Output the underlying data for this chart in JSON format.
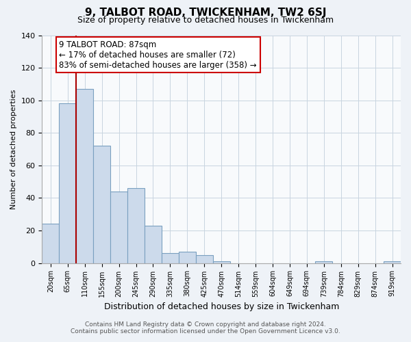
{
  "title": "9, TALBOT ROAD, TWICKENHAM, TW2 6SJ",
  "subtitle": "Size of property relative to detached houses in Twickenham",
  "xlabel": "Distribution of detached houses by size in Twickenham",
  "ylabel": "Number of detached properties",
  "categories": [
    "20sqm",
    "65sqm",
    "110sqm",
    "155sqm",
    "200sqm",
    "245sqm",
    "290sqm",
    "335sqm",
    "380sqm",
    "425sqm",
    "470sqm",
    "514sqm",
    "559sqm",
    "604sqm",
    "649sqm",
    "694sqm",
    "739sqm",
    "784sqm",
    "829sqm",
    "874sqm",
    "919sqm"
  ],
  "values": [
    24,
    98,
    107,
    72,
    44,
    46,
    23,
    6,
    7,
    5,
    1,
    0,
    0,
    0,
    0,
    0,
    1,
    0,
    0,
    0,
    1
  ],
  "bar_color": "#ccdaeb",
  "bar_edge_color": "#7aa0c0",
  "marker_line_color": "#aa0000",
  "annotation_line1": "9 TALBOT ROAD: 87sqm",
  "annotation_line2": "← 17% of detached houses are smaller (72)",
  "annotation_line3": "83% of semi-detached houses are larger (358) →",
  "annotation_box_color": "#ffffff",
  "annotation_box_edge": "#cc0000",
  "ylim": [
    0,
    140
  ],
  "yticks": [
    0,
    20,
    40,
    60,
    80,
    100,
    120,
    140
  ],
  "footer_line1": "Contains HM Land Registry data © Crown copyright and database right 2024.",
  "footer_line2": "Contains public sector information licensed under the Open Government Licence v3.0.",
  "bg_color": "#eef2f7",
  "plot_bg_color": "#f8fafc",
  "grid_color": "#c8d4e0"
}
